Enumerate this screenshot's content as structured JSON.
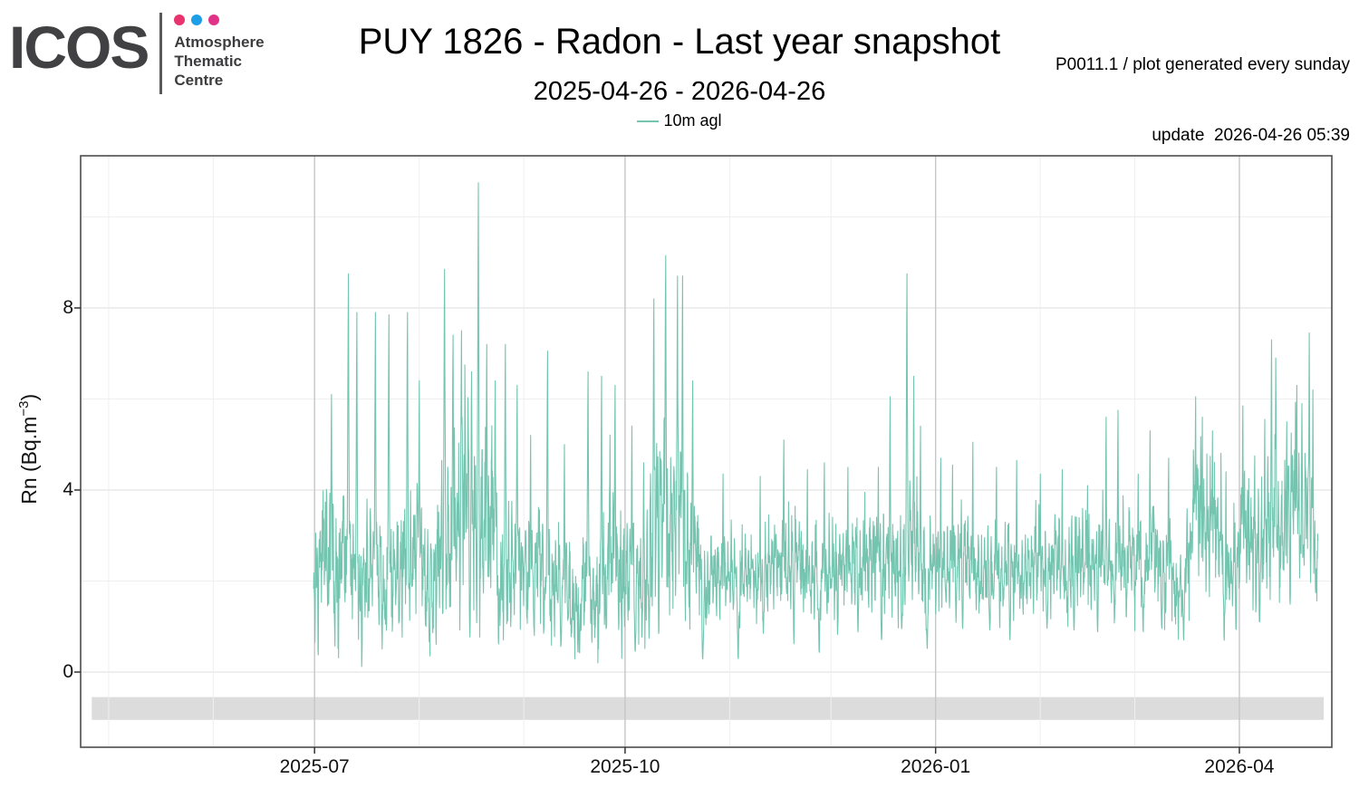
{
  "header": {
    "logo": {
      "wordmark": "ICOS",
      "org": "Atmosphere\nThematic\nCentre",
      "dot_colors": [
        "#e8336f",
        "#1d9fe8",
        "#e03387"
      ]
    },
    "title": "PUY 1826 - Radon - Last year snapshot",
    "subtitle": "2025-04-26 - 2026-04-26",
    "info_line1": "P0011.1 / plot generated every sunday",
    "info_line2": "update  2026-04-26 05:39"
  },
  "chart_data": {
    "type": "line",
    "title": "PUY 1826 - Radon - Last year snapshot",
    "subtitle": "2025-04-26 - 2026-04-26",
    "ylabel": "Rn (Bq.m⁻³)",
    "ylabel_pre": "Rn (Bq.m",
    "ylabel_sup": "−3",
    "ylabel_post": ")",
    "day_origin": "2025-04-26",
    "x_domain": [
      "2025-04-26",
      "2026-04-26"
    ],
    "x_ticks": [
      {
        "label": "2025-07",
        "day": 66
      },
      {
        "label": "2025-10",
        "day": 158
      },
      {
        "label": "2026-01",
        "day": 250
      },
      {
        "label": "2026-04",
        "day": 340
      }
    ],
    "x_minor_days": [
      5,
      36,
      97,
      128,
      189,
      219,
      281,
      309
    ],
    "y_ticks": [
      0,
      4,
      8
    ],
    "y_minor": [
      2,
      6,
      10
    ],
    "ylim": [
      -1.65,
      11.35
    ],
    "grid": {
      "major_v_color": "#c6c6c6",
      "minor_color": "#efefef",
      "major_h_color": "#e3e3e3",
      "border_color": "#4d4d4d"
    },
    "legend": {
      "label": "10m agl",
      "color": "#74c5b0",
      "position": "top-center"
    },
    "no_data_band": {
      "day_from": 0,
      "day_to": 365,
      "y_from": -0.55,
      "y_to": -1.05,
      "color": "#dcdcdc"
    },
    "series": [
      {
        "name": "10m agl",
        "color": "#74c5b0",
        "start_day": 65.7,
        "end_day": 363.3,
        "samples_per_day": 12,
        "seed": 11,
        "envelope": [
          [
            65.7,
            1.8,
            1.5
          ],
          [
            70,
            2.1,
            1.8
          ],
          [
            76,
            2.2,
            2.0
          ],
          [
            82,
            1.9,
            1.7
          ],
          [
            88,
            1.8,
            1.6
          ],
          [
            93,
            2.0,
            1.8
          ],
          [
            99,
            1.9,
            1.6
          ],
          [
            104,
            2.3,
            2.2
          ],
          [
            110,
            2.7,
            2.5
          ],
          [
            115,
            2.6,
            2.5
          ],
          [
            121,
            2.3,
            2.1
          ],
          [
            127,
            1.9,
            1.5
          ],
          [
            133,
            1.8,
            1.6
          ],
          [
            139,
            1.5,
            1.2
          ],
          [
            145,
            1.4,
            1.2
          ],
          [
            151,
            1.9,
            1.8
          ],
          [
            157,
            1.9,
            1.8
          ],
          [
            162,
            1.6,
            1.3
          ],
          [
            167,
            2.5,
            2.4
          ],
          [
            172,
            2.8,
            2.7
          ],
          [
            176,
            2.5,
            2.3
          ],
          [
            181,
            1.7,
            1.1
          ],
          [
            188,
            1.8,
            1.1
          ],
          [
            196,
            1.7,
            1.0
          ],
          [
            205,
            2.0,
            1.3
          ],
          [
            213,
            1.8,
            1.1
          ],
          [
            221,
            2.0,
            1.2
          ],
          [
            229,
            2.1,
            1.3
          ],
          [
            237,
            2.3,
            1.5
          ],
          [
            242,
            2.4,
            1.7
          ],
          [
            248,
            2.1,
            1.3
          ],
          [
            254,
            2.1,
            1.2
          ],
          [
            262,
            1.9,
            1.2
          ],
          [
            270,
            1.9,
            1.1
          ],
          [
            278,
            1.9,
            1.2
          ],
          [
            286,
            2.0,
            1.2
          ],
          [
            294,
            2.0,
            1.3
          ],
          [
            301,
            2.1,
            1.4
          ],
          [
            308,
            2.0,
            1.2
          ],
          [
            315,
            2.1,
            1.3
          ],
          [
            322,
            1.5,
            1.0
          ],
          [
            327,
            3.3,
            1.7
          ],
          [
            332,
            2.7,
            1.5
          ],
          [
            337,
            1.9,
            1.2
          ],
          [
            342,
            2.5,
            1.6
          ],
          [
            347,
            2.9,
            1.9
          ],
          [
            352,
            2.5,
            1.6
          ],
          [
            356,
            3.1,
            1.8
          ],
          [
            360,
            3.5,
            1.9
          ],
          [
            363.3,
            2.3,
            1.4
          ]
        ],
        "spikes": [
          [
            71,
            6.1,
            0.5
          ],
          [
            76,
            8.75,
            0.5
          ],
          [
            78.5,
            7.9,
            0.45
          ],
          [
            84,
            7.9,
            0.45
          ],
          [
            88,
            7.85,
            0.45
          ],
          [
            93.5,
            7.9,
            0.45
          ],
          [
            97,
            6.4,
            0.4
          ],
          [
            104.5,
            8.85,
            0.55
          ],
          [
            107,
            7.4,
            0.5
          ],
          [
            109.5,
            7.5,
            0.5
          ],
          [
            112.5,
            6.6,
            0.45
          ],
          [
            114.5,
            10.75,
            0.5
          ],
          [
            117,
            7.2,
            0.5
          ],
          [
            119.5,
            6.4,
            0.45
          ],
          [
            122.5,
            7.2,
            0.5
          ],
          [
            126,
            6.3,
            0.45
          ],
          [
            130,
            5.2,
            0.4
          ],
          [
            135,
            7.05,
            0.45
          ],
          [
            140,
            5.0,
            0.4
          ],
          [
            147,
            6.6,
            0.5
          ],
          [
            151,
            6.5,
            0.45
          ],
          [
            155,
            6.3,
            0.45
          ],
          [
            160,
            5.4,
            0.4
          ],
          [
            163.5,
            4.6,
            0.4
          ],
          [
            166.5,
            8.2,
            0.5
          ],
          [
            170,
            9.15,
            0.5
          ],
          [
            173.5,
            8.7,
            0.45
          ],
          [
            175,
            8.7,
            0.45
          ],
          [
            178,
            6.4,
            0.45
          ],
          [
            187,
            4.35,
            0.4
          ],
          [
            198,
            4.3,
            0.35
          ],
          [
            205,
            5.1,
            0.4
          ],
          [
            212,
            4.45,
            0.4
          ],
          [
            217,
            4.6,
            0.4
          ],
          [
            224,
            4.5,
            0.4
          ],
          [
            229,
            3.95,
            0.35
          ],
          [
            233,
            4.5,
            0.4
          ],
          [
            236.5,
            6.05,
            0.45
          ],
          [
            241.5,
            8.75,
            0.5
          ],
          [
            243.5,
            6.5,
            0.4
          ],
          [
            245.5,
            5.4,
            0.4
          ],
          [
            251.5,
            4.7,
            0.4
          ],
          [
            255,
            4.55,
            0.4
          ],
          [
            261,
            5.05,
            0.4
          ],
          [
            268,
            4.5,
            0.4
          ],
          [
            274,
            4.65,
            0.4
          ],
          [
            281,
            4.35,
            0.4
          ],
          [
            287.5,
            4.45,
            0.4
          ],
          [
            295,
            4.1,
            0.35
          ],
          [
            300.5,
            5.6,
            0.45
          ],
          [
            304,
            5.75,
            0.45
          ],
          [
            310,
            4.35,
            0.4
          ],
          [
            313.5,
            5.3,
            0.4
          ],
          [
            319,
            4.7,
            0.4
          ],
          [
            327,
            6.05,
            0.45
          ],
          [
            329,
            5.6,
            0.4
          ],
          [
            332,
            5.3,
            0.4
          ],
          [
            336,
            4.4,
            0.35
          ],
          [
            341,
            5.85,
            0.45
          ],
          [
            344.5,
            4.75,
            0.4
          ],
          [
            347.5,
            5.55,
            0.4
          ],
          [
            349.5,
            7.3,
            0.5
          ],
          [
            350.8,
            6.9,
            0.45
          ],
          [
            354,
            5.5,
            0.4
          ],
          [
            357,
            6.3,
            0.45
          ],
          [
            358.5,
            5.9,
            0.4
          ],
          [
            360.7,
            7.45,
            0.5
          ],
          [
            361.8,
            6.2,
            0.4
          ]
        ],
        "dips": [
          [
            86,
            0.8,
            0.3
          ],
          [
            101,
            0.75,
            0.3
          ],
          [
            112,
            0.55,
            0.3
          ],
          [
            120.5,
            0.4,
            0.35
          ],
          [
            131,
            0.75,
            0.3
          ],
          [
            139,
            0.5,
            0.35
          ],
          [
            144.5,
            0.3,
            0.4
          ],
          [
            152.5,
            0.65,
            0.3
          ],
          [
            161,
            0.35,
            0.4
          ],
          [
            168,
            0.7,
            0.25
          ],
          [
            181,
            0.2,
            0.4
          ],
          [
            191.5,
            0.15,
            0.4
          ],
          [
            199,
            0.8,
            0.3
          ],
          [
            208,
            0.55,
            0.3
          ],
          [
            215.5,
            0.3,
            0.4
          ],
          [
            227,
            0.8,
            0.3
          ],
          [
            234,
            0.6,
            0.3
          ],
          [
            240,
            0.9,
            0.25
          ],
          [
            247.5,
            0.3,
            0.4
          ],
          [
            258,
            0.75,
            0.3
          ],
          [
            266,
            0.9,
            0.3
          ],
          [
            272,
            0.6,
            0.3
          ],
          [
            283,
            0.85,
            0.3
          ],
          [
            291,
            0.9,
            0.3
          ],
          [
            298,
            0.75,
            0.3
          ],
          [
            306.5,
            0.9,
            0.3
          ],
          [
            311.5,
            0.7,
            0.3
          ],
          [
            317,
            0.9,
            0.3
          ],
          [
            323.5,
            0.55,
            0.4
          ],
          [
            335.5,
            0.5,
            0.4
          ],
          [
            339,
            0.9,
            0.3
          ],
          [
            346,
            1.0,
            0.25
          ],
          [
            355,
            1.3,
            0.25
          ],
          [
            362.6,
            1.6,
            0.3
          ]
        ]
      }
    ]
  }
}
